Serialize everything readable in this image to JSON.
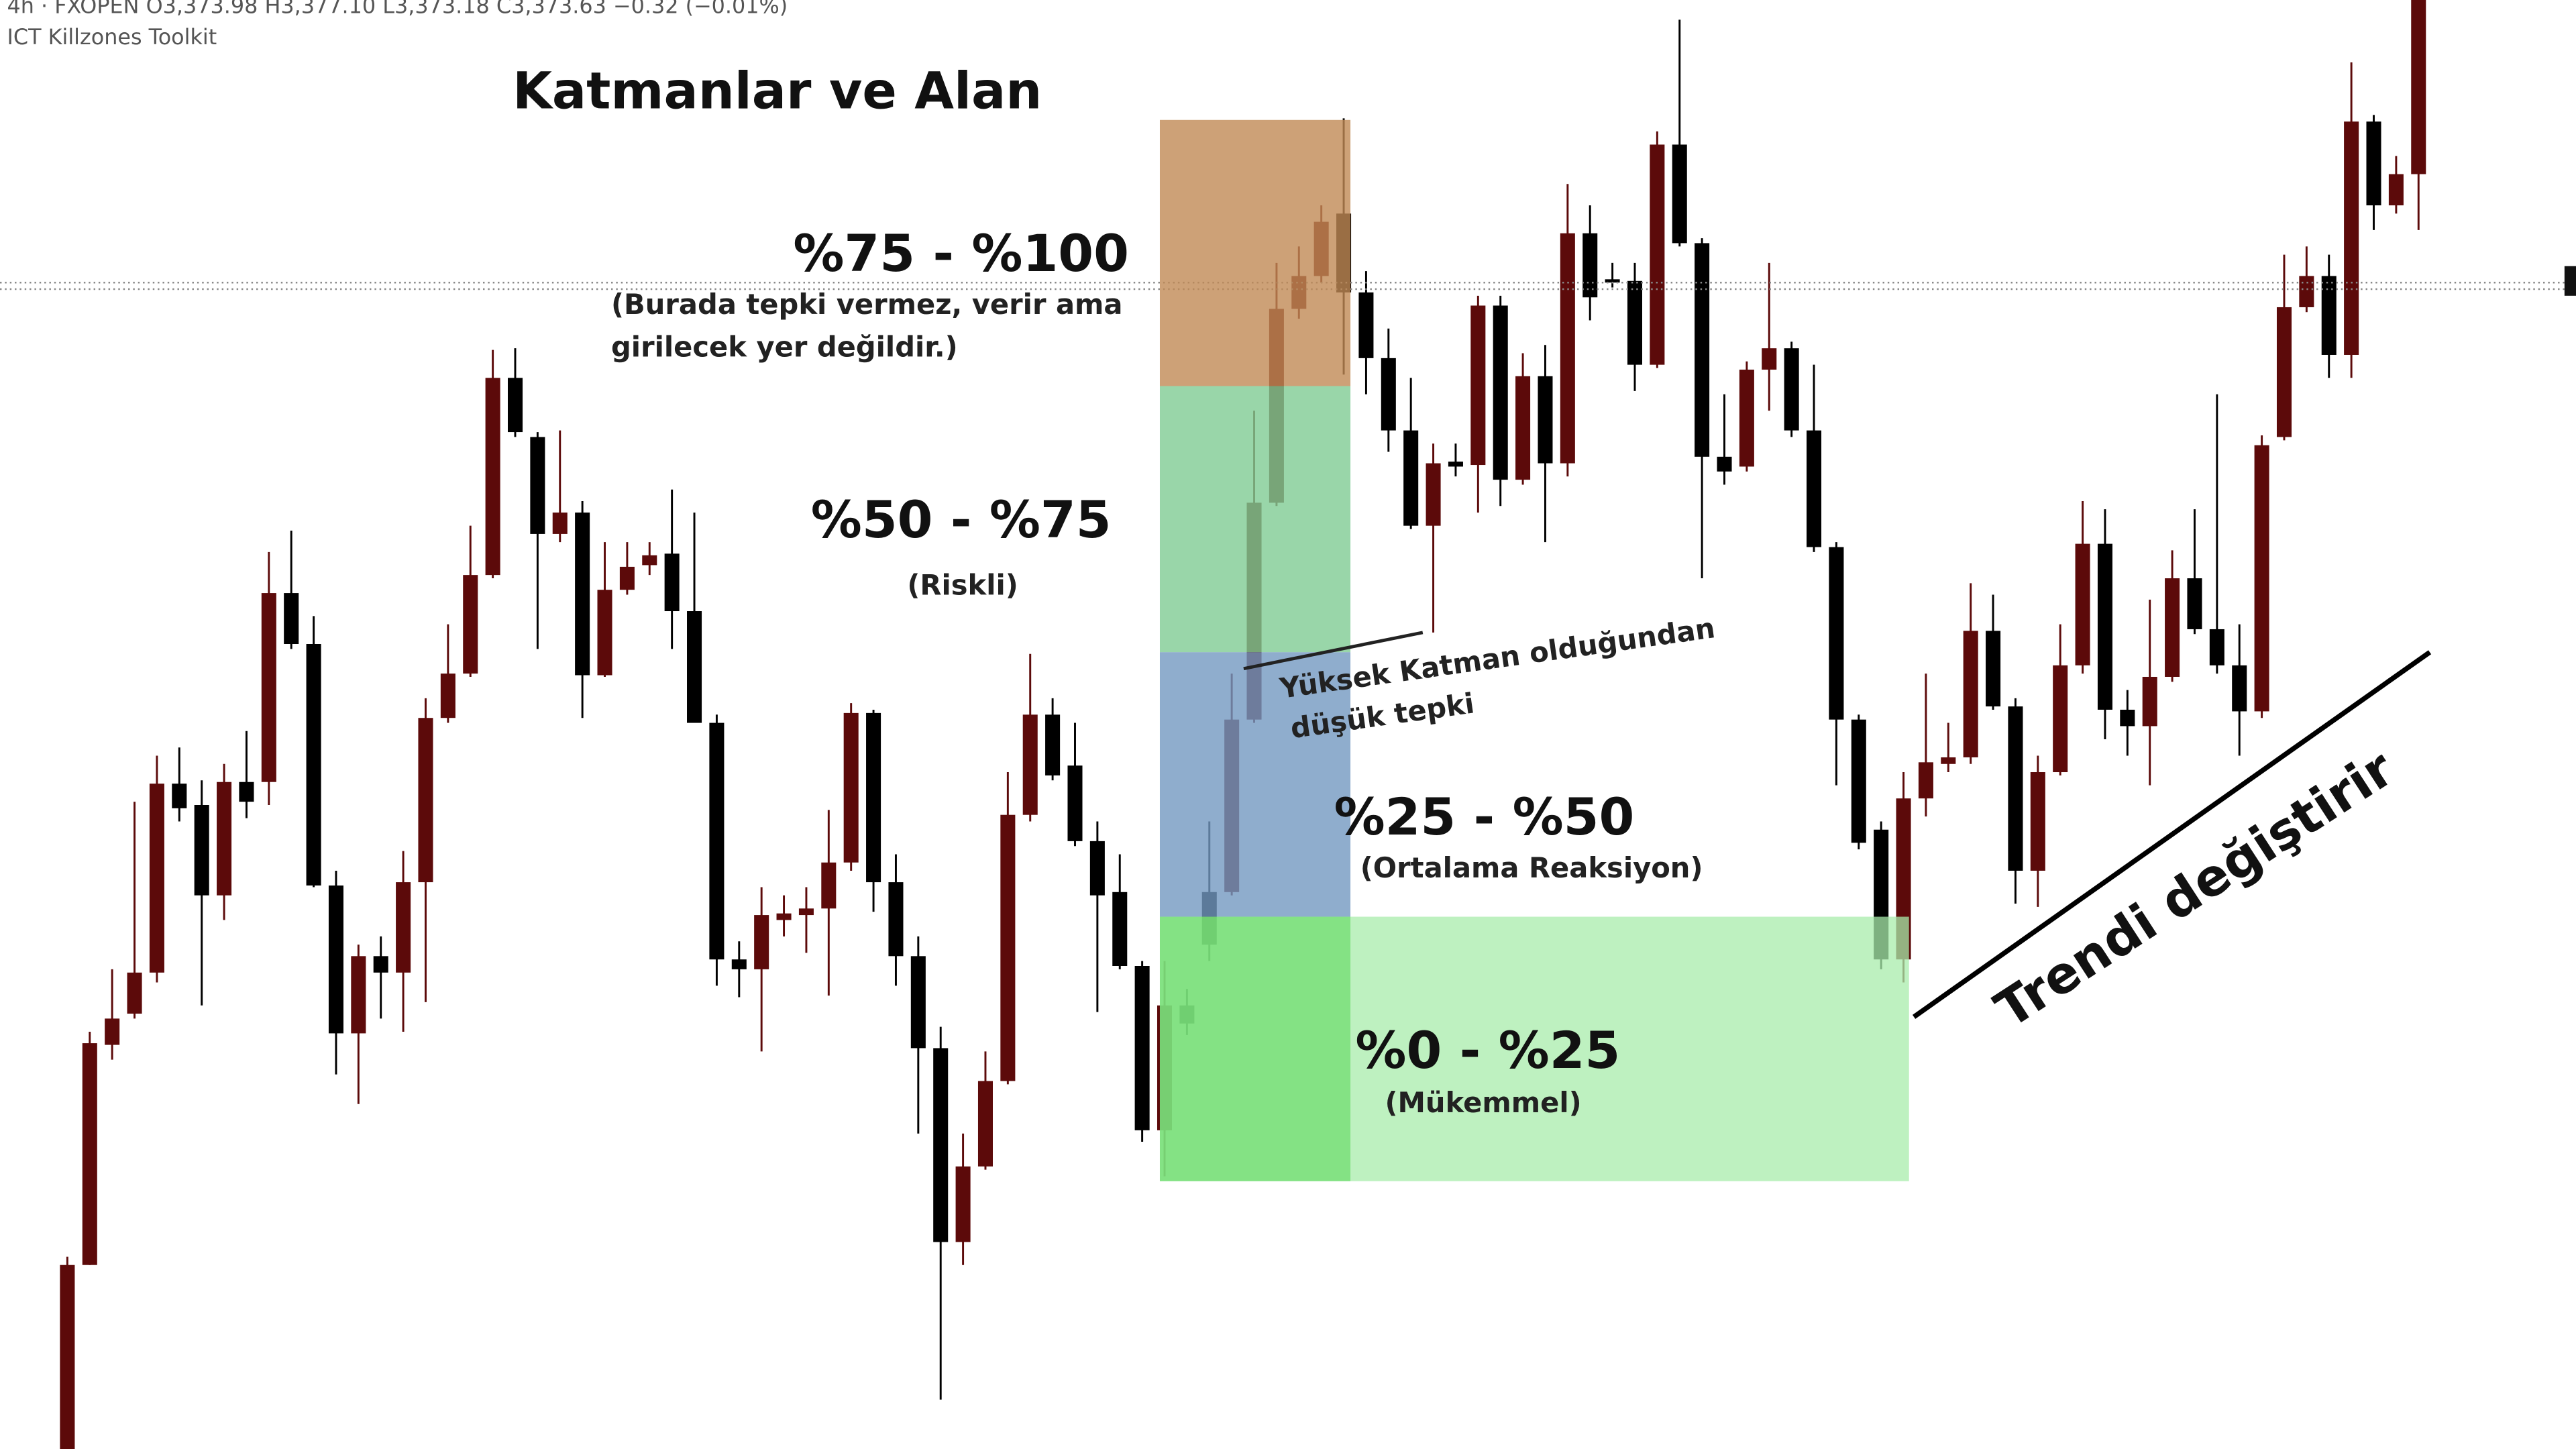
{
  "header": {
    "symbol_line": "· 4h · FXOPEN  O3,373.98  H3,377.10  L3,373.18  C3,373.63  −0.32 (−0.01%)",
    "indicator": "· ICT Killzones Toolkit"
  },
  "annotations": {
    "title": "Katmanlar ve Alan",
    "zone_75_100": "%75 - %100",
    "zone_75_100_note_1": "(Burada tepki vermez, verir ama",
    "zone_75_100_note_2": "girilecek yer değildir.)",
    "zone_50_75": "%50 - %75",
    "zone_50_75_note": "(Riskli)",
    "high_layer_1": "Yüksek Katman olduğundan",
    "high_layer_2": "düşük tepki",
    "zone_25_50": "%25 - %50",
    "zone_25_50_note": "(Ortalama Reaksiyon)",
    "zone_0_25": "%0 - %25",
    "zone_0_25_note": "(Mükemmel)",
    "trend": "Trendi değiştirir"
  },
  "chart_data": {
    "type": "candlestick",
    "up_color": "#5c0a0a",
    "down_color": "#000000",
    "ylim": [
      0,
      882
    ],
    "open": [
      0,
      112,
      246,
      265,
      290,
      405,
      392,
      337,
      406,
      406,
      521,
      490,
      343,
      253,
      300,
      290,
      345,
      445,
      472,
      532,
      652,
      616,
      557,
      570,
      471,
      523,
      538,
      545,
      510,
      442,
      298,
      292,
      322,
      325,
      329,
      357,
      448,
      345,
      300,
      244,
      126,
      172,
      224,
      386,
      447,
      416,
      370,
      339,
      294,
      194,
      270,
      339,
      339,
      444,
      576,
      694,
      714,
      752,
      704,
      664,
      620,
      562,
      601,
      599,
      696,
      590,
      653,
      600,
      740,
      712,
      711,
      660,
      794,
      734,
      604,
      598,
      657,
      670,
      620,
      549,
      444,
      377,
      298,
      396,
      417,
      421,
      498,
      452,
      352,
      412,
      477,
      551,
      450,
      440,
      470,
      530,
      499,
      477,
      449,
      616,
      695,
      714,
      666,
      808,
      757,
      776
    ],
    "high": [
      117,
      254,
      292,
      394,
      422,
      427,
      407,
      417,
      437,
      546,
      559,
      507,
      352,
      307,
      312,
      364,
      457,
      502,
      562,
      669,
      670,
      619,
      620,
      577,
      552,
      552,
      552,
      584,
      570,
      447,
      309,
      342,
      337,
      342,
      389,
      454,
      450,
      362,
      312,
      257,
      192,
      242,
      412,
      484,
      457,
      442,
      382,
      362,
      297,
      297,
      280,
      382,
      472,
      632,
      722,
      732,
      757,
      810,
      717,
      682,
      652,
      612,
      612,
      702,
      702,
      667,
      672,
      770,
      757,
      722,
      722,
      802,
      870,
      737,
      642,
      662,
      722,
      674,
      660,
      552,
      447,
      382,
      412,
      472,
      442,
      527,
      520,
      457,
      422,
      502,
      577,
      572,
      462,
      517,
      547,
      572,
      642,
      502,
      617,
      727,
      732,
      727,
      844,
      812,
      787,
      882
    ],
    "low": [
      0,
      112,
      237,
      262,
      284,
      382,
      270,
      322,
      384,
      392,
      487,
      342,
      228,
      210,
      262,
      254,
      272,
      442,
      470,
      530,
      616,
      487,
      552,
      445,
      470,
      520,
      532,
      487,
      442,
      282,
      275,
      242,
      312,
      302,
      276,
      352,
      327,
      282,
      192,
      30,
      112,
      170,
      222,
      382,
      407,
      367,
      266,
      292,
      187,
      166,
      252,
      297,
      337,
      442,
      574,
      688,
      710,
      654,
      642,
      607,
      560,
      497,
      592,
      570,
      574,
      587,
      552,
      592,
      687,
      707,
      644,
      658,
      732,
      530,
      587,
      595,
      632,
      616,
      546,
      404,
      365,
      292,
      284,
      385,
      412,
      417,
      450,
      332,
      330,
      410,
      472,
      432,
      422,
      404,
      467,
      496,
      472,
      422,
      445,
      614,
      692,
      652,
      652,
      742,
      752,
      742
    ],
    "close": [
      112,
      247,
      262,
      290,
      405,
      390,
      337,
      406,
      394,
      521,
      490,
      343,
      253,
      300,
      290,
      345,
      445,
      472,
      532,
      652,
      619,
      557,
      570,
      471,
      523,
      537,
      544,
      510,
      442,
      298,
      292,
      325,
      326,
      329,
      357,
      448,
      345,
      300,
      244,
      126,
      172,
      224,
      386,
      447,
      410,
      370,
      337,
      294,
      194,
      270,
      259,
      307,
      444,
      576,
      694,
      714,
      747,
      704,
      664,
      620,
      562,
      600,
      598,
      696,
      590,
      653,
      600,
      740,
      701,
      710,
      660,
      794,
      734,
      604,
      595,
      657,
      670,
      620,
      549,
      444,
      369,
      298,
      396,
      418,
      421,
      498,
      452,
      352,
      412,
      477,
      551,
      450,
      440,
      470,
      530,
      499,
      477,
      449,
      611,
      695,
      714,
      666,
      808,
      757,
      776,
      882
    ]
  }
}
